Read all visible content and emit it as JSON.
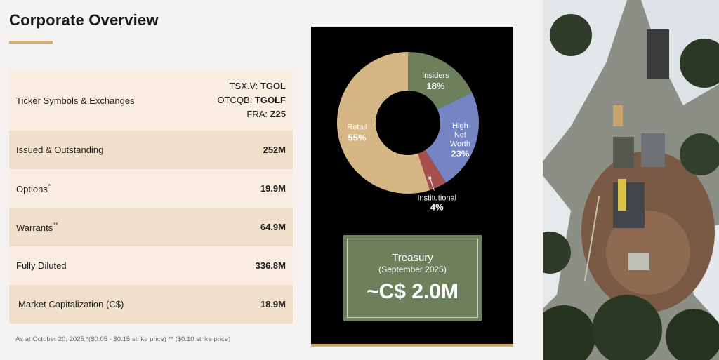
{
  "page": {
    "title": "Corporate Overview"
  },
  "table": {
    "ticker": {
      "label": "Ticker Symbols & Exchanges",
      "lines": [
        {
          "prefix": "TSX.V: ",
          "symbol": "TGOL"
        },
        {
          "prefix": "OTCQB: ",
          "symbol": "TGOLF"
        },
        {
          "prefix": "FRA: ",
          "symbol": "Z25"
        }
      ]
    },
    "issued": {
      "label": "Issued & Outstanding",
      "value": "252M"
    },
    "options": {
      "label": "Options",
      "marker": "*",
      "value": "19.9M"
    },
    "warrants": {
      "label": "Warrants",
      "marker": "**",
      "value": "64.9M"
    },
    "diluted": {
      "label": "Fully Diluted",
      "value": "336.8M"
    },
    "market_cap": {
      "label": "Market Capitalization (C$)",
      "value": "18.9M"
    }
  },
  "footnote": "As at October 20, 2025.*($0.05 - $0.15 strike price) ** ($0.10 strike price)",
  "chart_data": {
    "type": "pie",
    "style": "donut",
    "categories": [
      "Insiders",
      "High Net Worth",
      "Institutional",
      "Retail"
    ],
    "values": [
      18,
      23,
      4,
      55
    ],
    "labels": [
      "18%",
      "23%",
      "4%",
      "55%"
    ],
    "colors": [
      "#6e7f5c",
      "#7584c2",
      "#a5504b",
      "#d6b685"
    ]
  },
  "treasury": {
    "title": "Treasury",
    "subtitle": "(September 2025)",
    "value": "~C$ 2.0M"
  },
  "photo": {
    "alt": "aerial-drill-site"
  }
}
